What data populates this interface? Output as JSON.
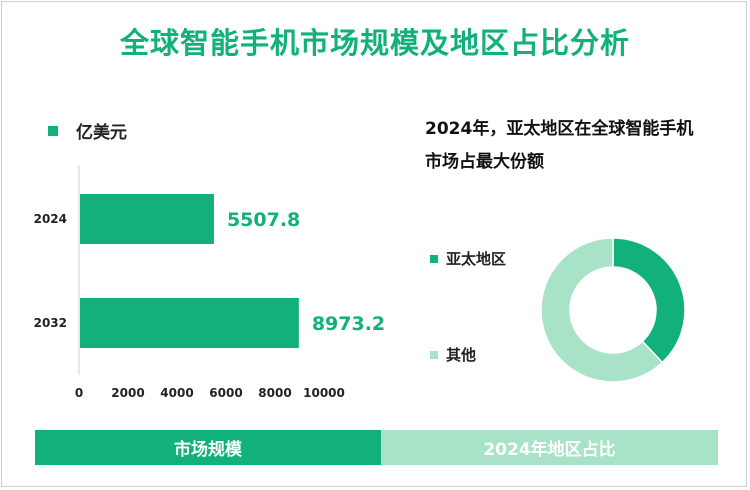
{
  "title": "全球智能手机市场规模及地区占比分析",
  "chart_data": [
    {
      "type": "bar",
      "orientation": "horizontal",
      "legend": "亿美元",
      "categories": [
        "2024",
        "2032"
      ],
      "values": [
        5507.8,
        8973.2
      ],
      "value_labels": [
        "5507.8",
        "8973.2"
      ],
      "xlim": [
        0,
        10000
      ],
      "xticks": [
        "0",
        "2000",
        "4000",
        "6000",
        "8000",
        "10000"
      ],
      "color": "#12b07a",
      "grid": false
    },
    {
      "type": "pie",
      "title": "2024年，亚太地区在全球智能手机市场占最大份额",
      "title_lines": [
        "2024年，亚太地区在全球智能手机",
        "市场占最大份额"
      ],
      "donut": true,
      "slices": [
        {
          "label": "亚太地区",
          "value": 38,
          "color": "#12b07a"
        },
        {
          "label": "其他",
          "value": 62,
          "color": "#a9e3c7"
        }
      ]
    }
  ],
  "footer": {
    "left_label": "市场规模",
    "right_label": "2024年地区占比"
  }
}
